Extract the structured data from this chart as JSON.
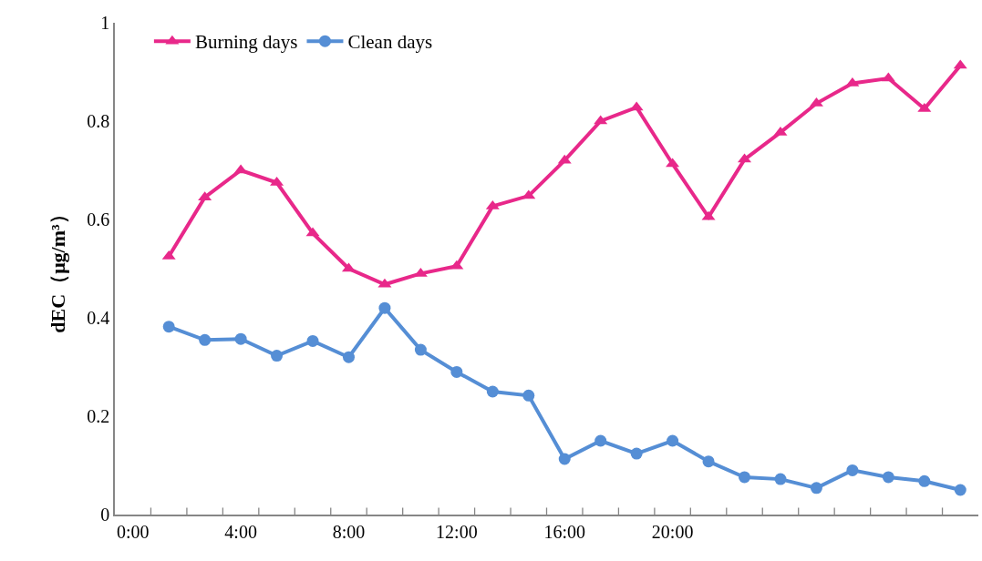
{
  "chart_data": {
    "type": "line",
    "ylabel": "dEC（μg/m³）",
    "categories": [
      "0:00",
      null,
      null,
      "4:00",
      null,
      null,
      "8:00",
      null,
      null,
      "12:00",
      null,
      null,
      "16:00",
      null,
      null,
      "20:00",
      null,
      null,
      null,
      null,
      null,
      null,
      null,
      null
    ],
    "series": [
      {
        "name": "Burning days",
        "color": "#e8288a",
        "marker": "triangle",
        "values": [
          null,
          0.525,
          0.645,
          0.7,
          0.675,
          0.572,
          0.5,
          0.468,
          0.49,
          0.505,
          0.627,
          0.648,
          0.72,
          0.8,
          0.828,
          0.713,
          0.605,
          0.722,
          0.777,
          0.836,
          0.877,
          0.887,
          0.825,
          0.913
        ]
      },
      {
        "name": "Clean days",
        "color": "#558ed5",
        "marker": "circle",
        "values": [
          null,
          0.382,
          0.355,
          0.357,
          0.323,
          0.353,
          0.32,
          0.42,
          0.335,
          0.29,
          0.25,
          0.242,
          0.113,
          0.15,
          0.124,
          0.15,
          0.108,
          0.076,
          0.072,
          0.054,
          0.09,
          0.076,
          0.068,
          0.05
        ]
      }
    ],
    "ylim": [
      0,
      1
    ],
    "yticks": [
      0,
      0.2,
      0.4,
      0.6,
      0.8,
      1
    ],
    "legend": "top left",
    "line_style": "solid"
  }
}
